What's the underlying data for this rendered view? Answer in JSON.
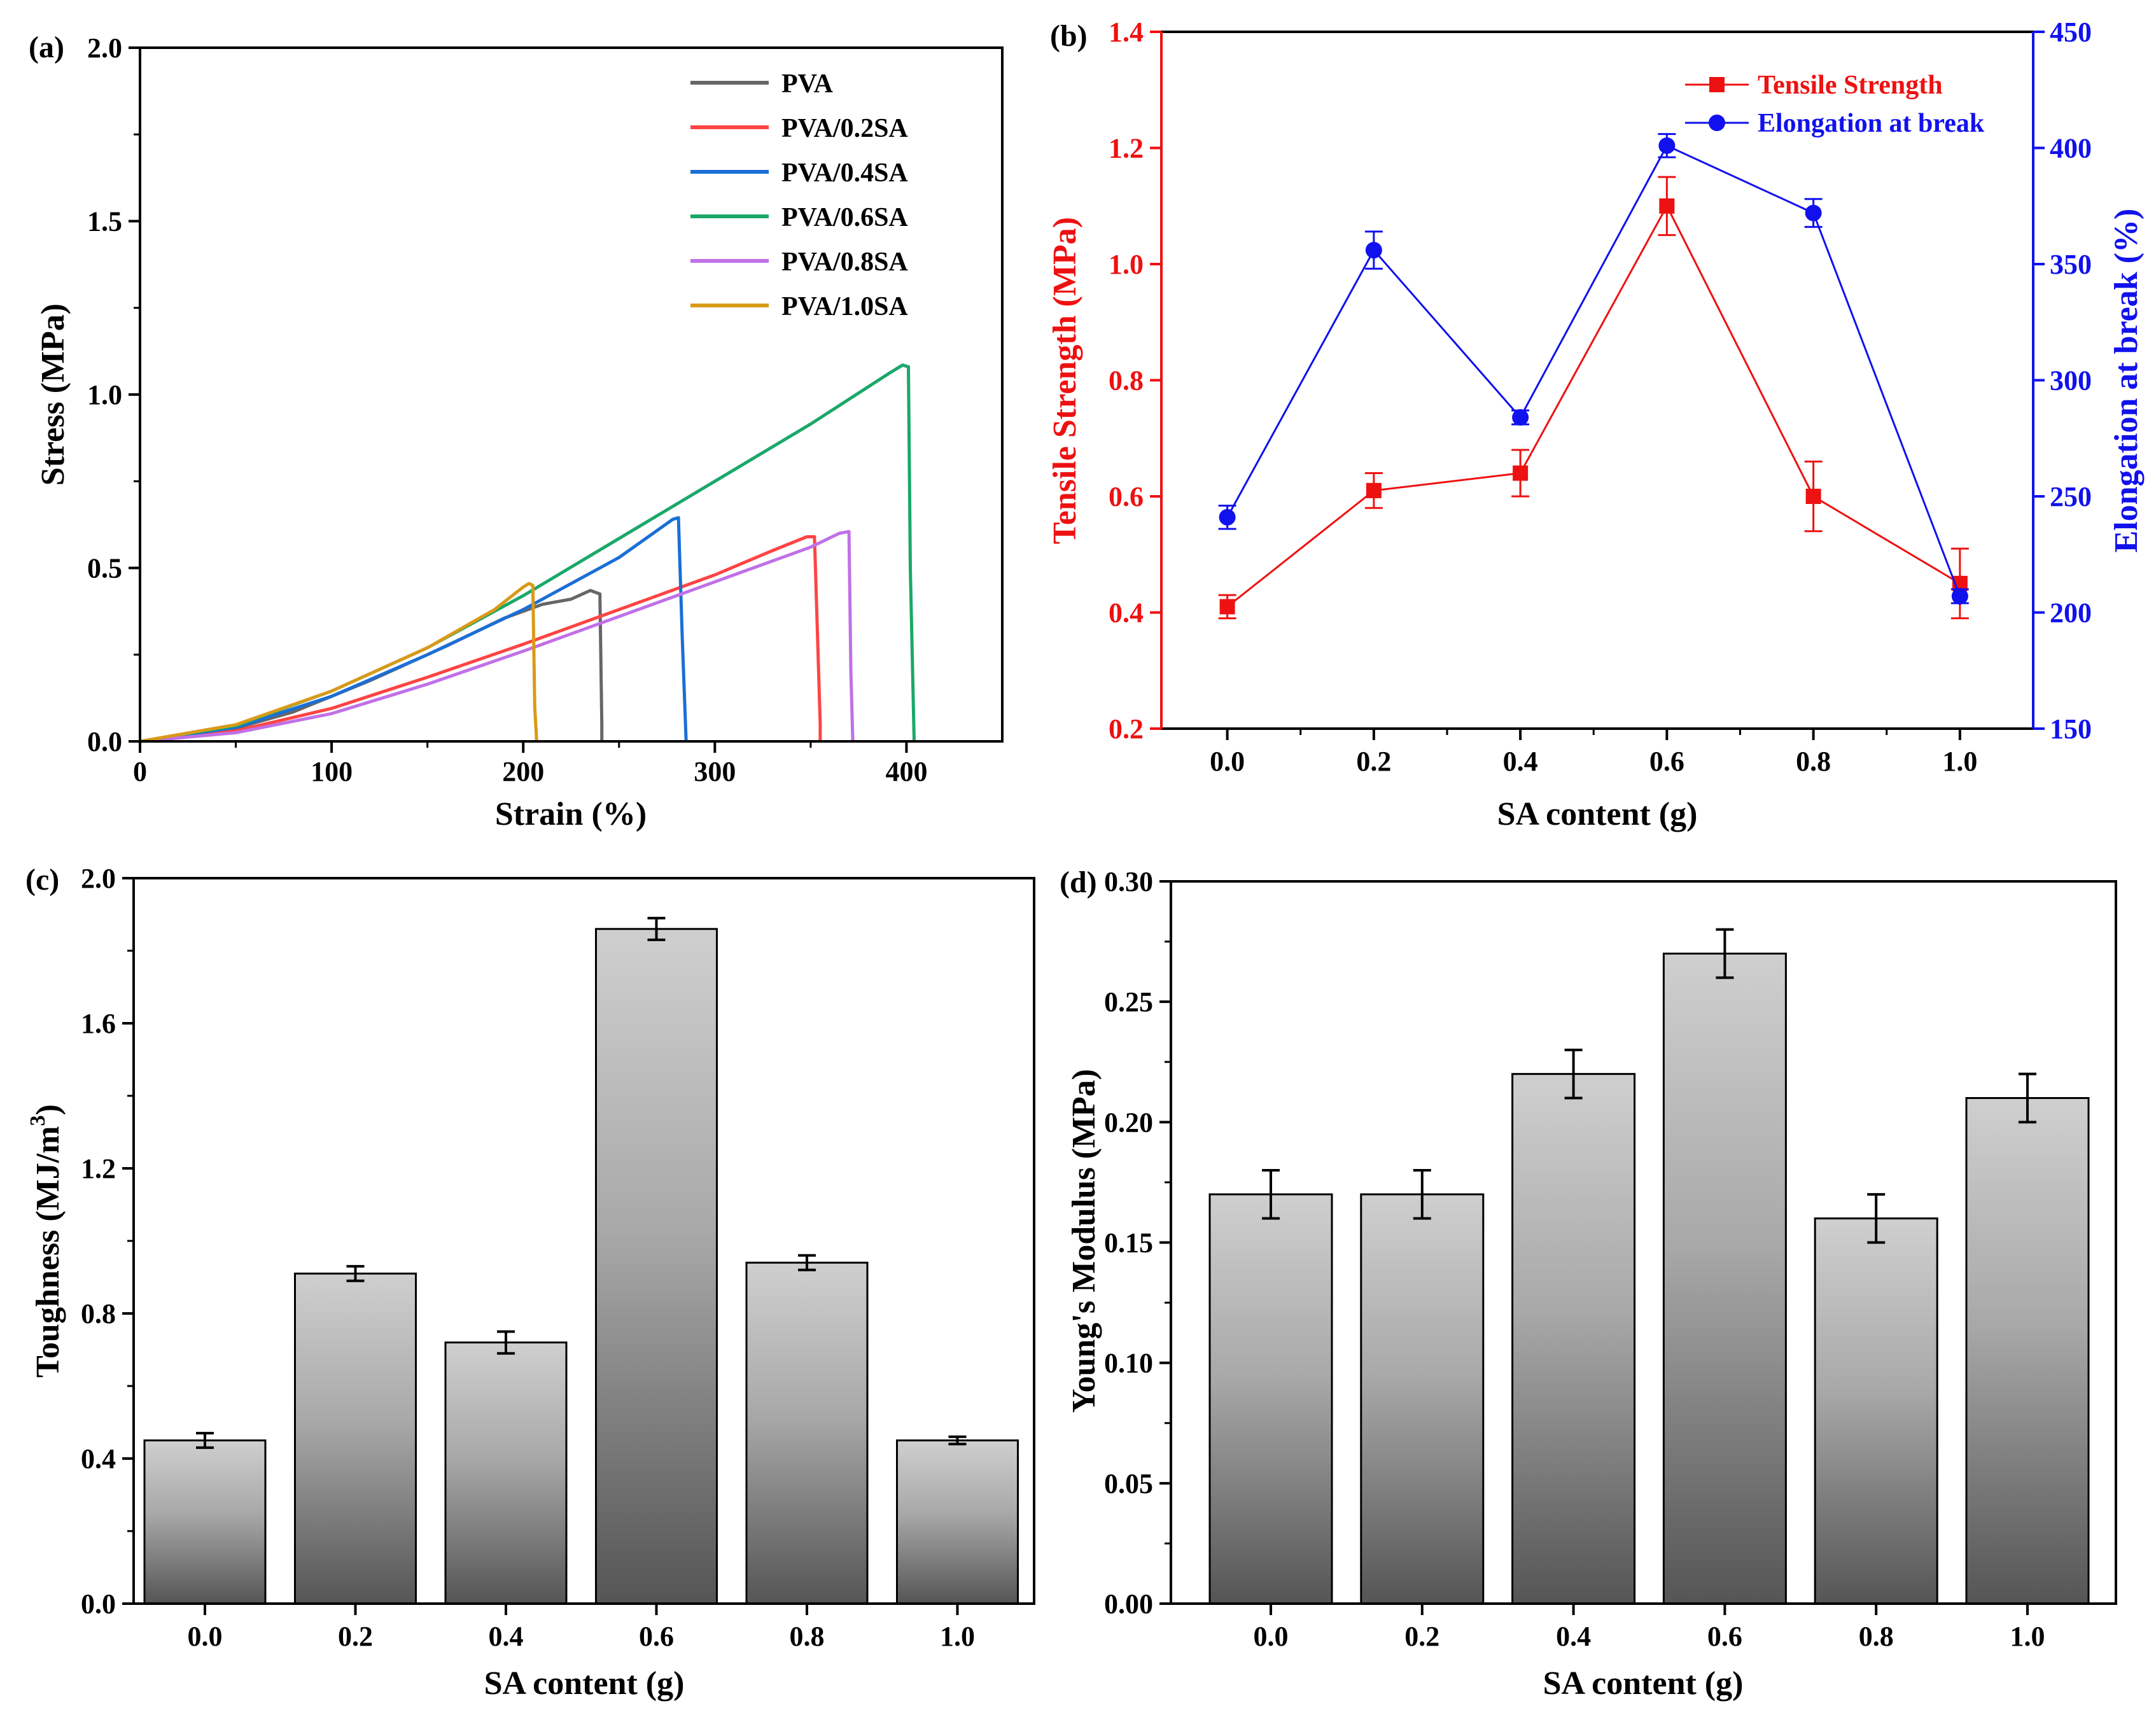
{
  "chart_data": [
    {
      "id": "a",
      "panel_label": "(a)",
      "type": "line",
      "xlabel": "Strain (%)",
      "ylabel": "Stress (MPa)",
      "xlim": [
        0,
        450
      ],
      "ylim": [
        0,
        2.0
      ],
      "xticks": [
        0,
        100,
        200,
        300,
        400
      ],
      "yticks": [
        "0.0",
        "0.5",
        "1.0",
        "1.5",
        "2.0"
      ],
      "series": [
        {
          "name": "PVA",
          "color": "#666666",
          "points": [
            [
              0,
              0
            ],
            [
              40,
              0.022
            ],
            [
              80,
              0.085
            ],
            [
              120,
              0.175
            ],
            [
              160,
              0.275
            ],
            [
              190,
              0.355
            ],
            [
              210,
              0.395
            ],
            [
              225,
              0.41
            ],
            [
              235,
              0.435
            ],
            [
              240,
              0.425
            ],
            [
              241,
              0.05
            ],
            [
              241,
              0
            ]
          ]
        },
        {
          "name": "PVA/0.2SA",
          "color": "#ff4444",
          "points": [
            [
              0,
              0
            ],
            [
              50,
              0.03
            ],
            [
              100,
              0.095
            ],
            [
              150,
              0.185
            ],
            [
              200,
              0.28
            ],
            [
              250,
              0.38
            ],
            [
              300,
              0.48
            ],
            [
              330,
              0.55
            ],
            [
              348,
              0.59
            ],
            [
              352,
              0.59
            ],
            [
              355,
              0.05
            ],
            [
              355,
              0
            ]
          ]
        },
        {
          "name": "PVA/0.4SA",
          "color": "#1a6fd6",
          "points": [
            [
              0,
              0
            ],
            [
              50,
              0.04
            ],
            [
              100,
              0.13
            ],
            [
              150,
              0.25
            ],
            [
              200,
              0.38
            ],
            [
              250,
              0.53
            ],
            [
              278,
              0.64
            ],
            [
              281,
              0.645
            ],
            [
              283,
              0.3
            ],
            [
              285,
              0
            ]
          ]
        },
        {
          "name": "PVA/0.6SA",
          "color": "#1aa86a",
          "points": [
            [
              0,
              0
            ],
            [
              50,
              0.045
            ],
            [
              100,
              0.145
            ],
            [
              150,
              0.27
            ],
            [
              200,
              0.42
            ],
            [
              250,
              0.585
            ],
            [
              300,
              0.75
            ],
            [
              350,
              0.915
            ],
            [
              392,
              1.065
            ],
            [
              398,
              1.085
            ],
            [
              401,
              1.08
            ],
            [
              402,
              0.5
            ],
            [
              404,
              0
            ]
          ]
        },
        {
          "name": "PVA/0.8SA",
          "color": "#c070e8",
          "points": [
            [
              0,
              0
            ],
            [
              50,
              0.025
            ],
            [
              100,
              0.08
            ],
            [
              150,
              0.165
            ],
            [
              200,
              0.26
            ],
            [
              250,
              0.36
            ],
            [
              300,
              0.46
            ],
            [
              350,
              0.56
            ],
            [
              365,
              0.6
            ],
            [
              370,
              0.605
            ],
            [
              371,
              0.2
            ],
            [
              372,
              0
            ]
          ]
        },
        {
          "name": "PVA/1.0SA",
          "color": "#d99a18",
          "points": [
            [
              0,
              0
            ],
            [
              50,
              0.048
            ],
            [
              100,
              0.145
            ],
            [
              150,
              0.27
            ],
            [
              185,
              0.38
            ],
            [
              200,
              0.445
            ],
            [
              203,
              0.455
            ],
            [
              205,
              0.45
            ],
            [
              206,
              0.1
            ],
            [
              207,
              0
            ]
          ]
        }
      ]
    },
    {
      "id": "b",
      "panel_label": "(b)",
      "type": "line",
      "xlabel": "SA content (g)",
      "ylabel_left": "Tensile Strength (MPa)",
      "ylabel_right": "Elongation at break (%)",
      "categories": [
        "0.0",
        "0.2",
        "0.4",
        "0.6",
        "0.8",
        "1.0"
      ],
      "x": [
        0.0,
        0.2,
        0.4,
        0.6,
        0.8,
        1.0
      ],
      "xlim": [
        -0.09,
        1.1
      ],
      "ylim_left": [
        0.2,
        1.4
      ],
      "ylim_right": [
        150,
        450
      ],
      "yticks_left": [
        "0.2",
        "0.4",
        "0.6",
        "0.8",
        "1.0",
        "1.2",
        "1.4"
      ],
      "yticks_right": [
        "150",
        "200",
        "250",
        "300",
        "350",
        "400",
        "450"
      ],
      "series": [
        {
          "name": "Tensile Strength",
          "axis": "left",
          "color": "#ee1111",
          "marker": "square",
          "values": [
            0.41,
            0.61,
            0.64,
            1.1,
            0.6,
            0.45
          ],
          "errors": [
            0.02,
            0.03,
            0.04,
            0.05,
            0.06,
            0.06
          ]
        },
        {
          "name": "Elongation at break",
          "axis": "right",
          "color": "#1111ee",
          "marker": "circle",
          "values": [
            241,
            356,
            284,
            401,
            372,
            207
          ],
          "errors": [
            5,
            8,
            3,
            5,
            6,
            3
          ]
        }
      ]
    },
    {
      "id": "c",
      "panel_label": "(c)",
      "type": "bar",
      "xlabel": "SA content (g)",
      "ylabel": "Toughness (MJ/m³)",
      "ylabel_main": "Toughness (MJ/m",
      "ylabel_sup": "3",
      "ylabel_close": ")",
      "categories": [
        "0.0",
        "0.2",
        "0.4",
        "0.6",
        "0.8",
        "1.0"
      ],
      "values": [
        0.45,
        0.91,
        0.72,
        1.86,
        0.94,
        0.45
      ],
      "errors": [
        0.02,
        0.02,
        0.03,
        0.03,
        0.02,
        0.01
      ],
      "ylim": [
        0,
        2.0
      ],
      "yticks": [
        "0.0",
        "0.4",
        "0.8",
        "1.2",
        "1.6",
        "2.0"
      ]
    },
    {
      "id": "d",
      "panel_label": "(d)",
      "type": "bar",
      "xlabel": "SA content (g)",
      "ylabel": "Young's Modulus (MPa)",
      "categories": [
        "0.0",
        "0.2",
        "0.4",
        "0.6",
        "0.8",
        "1.0"
      ],
      "values": [
        0.17,
        0.17,
        0.22,
        0.27,
        0.16,
        0.21
      ],
      "errors": [
        0.01,
        0.01,
        0.01,
        0.01,
        0.01,
        0.01
      ],
      "ylim": [
        0,
        0.3
      ],
      "yticks": [
        "0.00",
        "0.05",
        "0.10",
        "0.15",
        "0.20",
        "0.25",
        "0.30"
      ]
    }
  ]
}
